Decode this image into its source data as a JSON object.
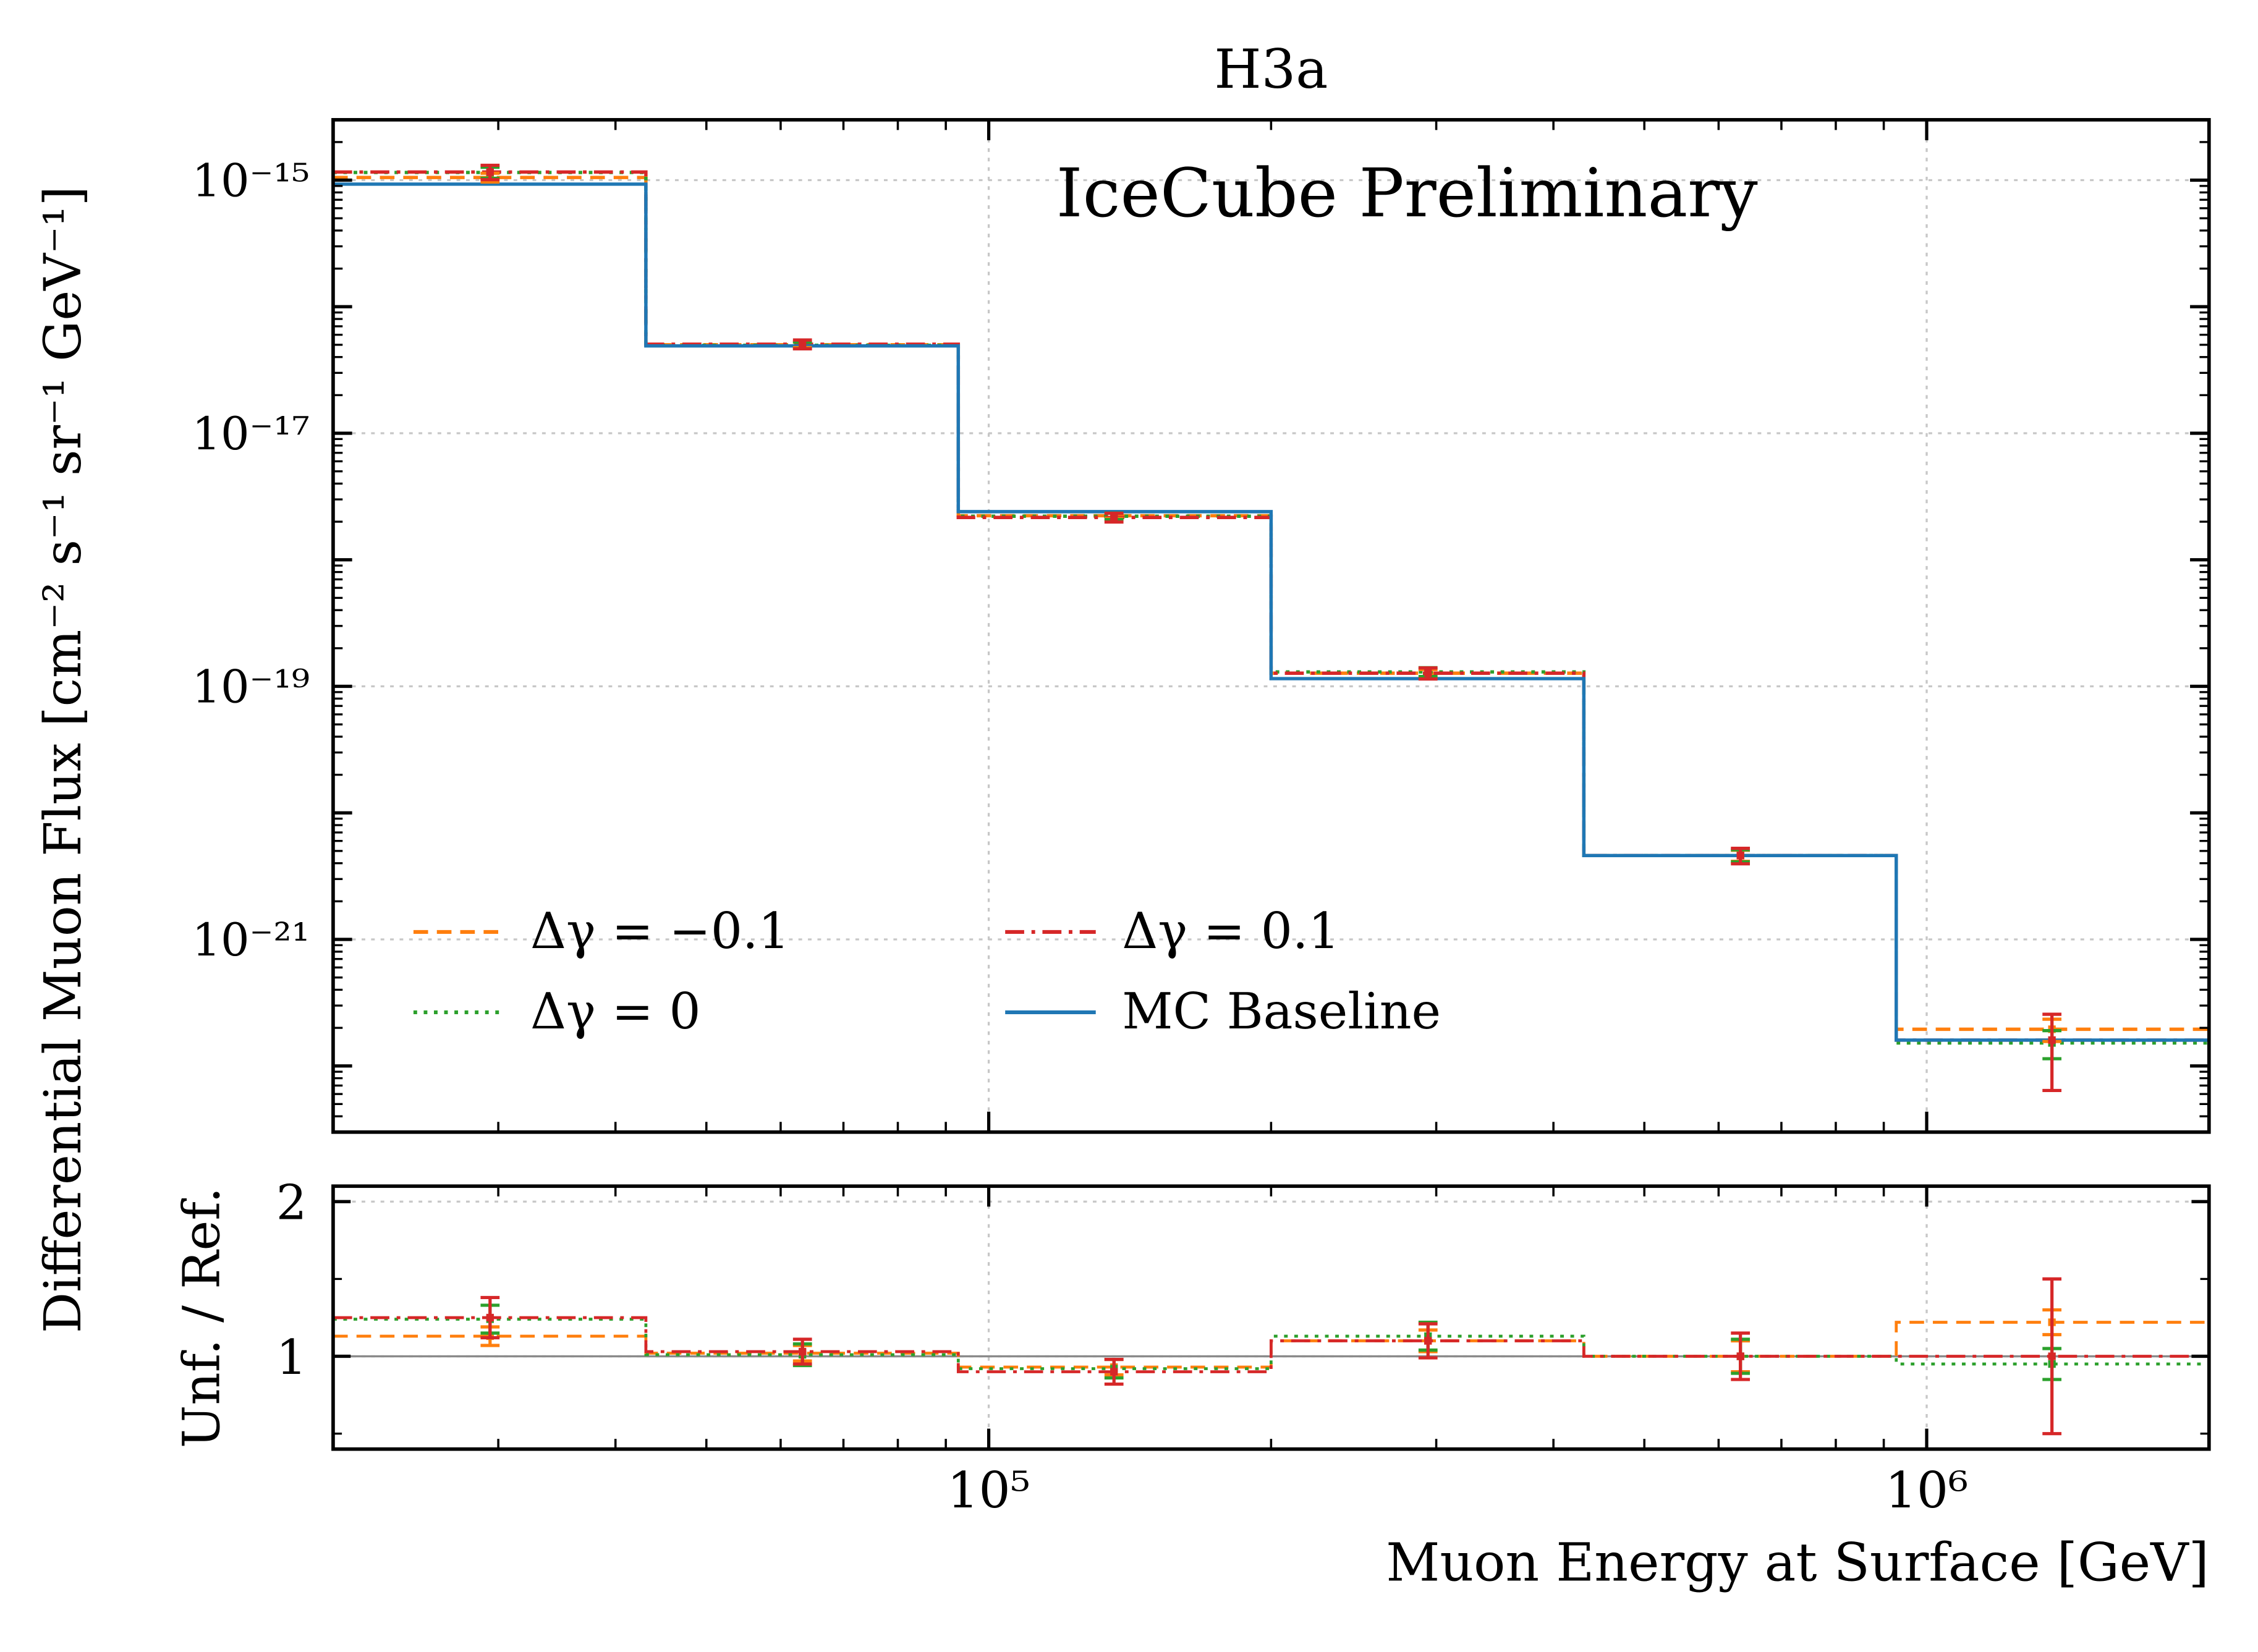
{
  "title": "H3a",
  "watermark": "IceCube Preliminary",
  "axes": {
    "x_label": "Muon Energy at Surface [GeV]",
    "y_label_top": "Differential Muon Flux [cm⁻² s⁻¹ sr⁻¹ GeV⁻¹]",
    "y_label_bottom": "Unf. / Ref."
  },
  "colors": {
    "orange": "#ff7f0e",
    "green": "#2ca02c",
    "red": "#d62728",
    "blue": "#1f77b4",
    "watermark_gray": "#b3b3b3",
    "grid_gray": "#c7c7c7",
    "ref_line_gray": "#8a8a8a"
  },
  "chart_data": {
    "type": "line",
    "subtype": "step-histogram unfolding result with ratio subpanel",
    "x_scale": "log",
    "x_range": [
      20000,
      2000000
    ],
    "x_ticks": [
      {
        "value": 100000,
        "label": "10⁵"
      },
      {
        "value": 1000000,
        "label": "10⁶"
      }
    ],
    "bin_edges": [
      20000,
      43100,
      92800,
      200000,
      431000,
      928000,
      2000000
    ],
    "bin_centers": [
      29400,
      63300,
      136000,
      294000,
      633000,
      1360000
    ],
    "top_panel": {
      "y_scale": "log",
      "y_range": [
        3e-23,
        3e-15
      ],
      "y_ticks": [
        {
          "value": 1e-15,
          "label": "10⁻¹⁵"
        },
        {
          "value": 1e-17,
          "label": "10⁻¹⁷"
        },
        {
          "value": 1e-19,
          "label": "10⁻¹⁹"
        },
        {
          "value": 1e-21,
          "label": "10⁻²¹"
        }
      ],
      "grid": true
    },
    "ratio_panel": {
      "y_scale": "linear",
      "y_range": [
        0.4,
        2.1
      ],
      "y_ticks": [
        {
          "value": 1,
          "label": "1"
        },
        {
          "value": 2,
          "label": "2"
        }
      ],
      "y_minor_ticks": [
        0.5,
        1.5
      ],
      "reference_line": 1,
      "grid": true
    },
    "series": [
      {
        "name": "Δγ = −0.1",
        "color": "#ff7f0e",
        "style": "dashed",
        "flux": [
          1.05e-15,
          5e-17,
          2.23e-18,
          1.27e-19,
          4.6e-21,
          1.95e-22
        ],
        "flux_err_frac": [
          0.08,
          0.05,
          0.05,
          0.07,
          0.1,
          0.2
        ],
        "ratio": [
          1.13,
          1.02,
          0.93,
          1.1,
          1.0,
          1.22
        ],
        "ratio_err": [
          0.06,
          0.05,
          0.05,
          0.07,
          0.1,
          0.08
        ]
      },
      {
        "name": "Δγ = 0",
        "color": "#2ca02c",
        "style": "dotted",
        "flux": [
          1.15e-15,
          4.95e-17,
          2.21e-18,
          1.3e-19,
          4.6e-21,
          1.52e-22
        ],
        "flux_err_frac": [
          0.1,
          0.06,
          0.06,
          0.08,
          0.11,
          0.25
        ],
        "ratio": [
          1.24,
          1.01,
          0.92,
          1.13,
          1.0,
          0.95
        ],
        "ratio_err": [
          0.09,
          0.07,
          0.06,
          0.09,
          0.11,
          0.1
        ]
      },
      {
        "name": "Δγ = 0.1",
        "color": "#d62728",
        "style": "dashdot",
        "flux": [
          1.16e-15,
          5.05e-17,
          2.16e-18,
          1.27e-19,
          4.6e-21,
          1.6e-22
        ],
        "flux_err_frac": [
          0.13,
          0.08,
          0.08,
          0.1,
          0.14,
          0.6
        ],
        "ratio": [
          1.25,
          1.03,
          0.9,
          1.1,
          1.0,
          1.0
        ],
        "ratio_err": [
          0.13,
          0.08,
          0.08,
          0.11,
          0.15,
          0.5
        ]
      },
      {
        "name": "MC Baseline",
        "color": "#1f77b4",
        "style": "solid",
        "flux": [
          9.3e-16,
          4.9e-17,
          2.4e-18,
          1.15e-19,
          4.6e-21,
          1.6e-22
        ]
      }
    ],
    "legend": {
      "entries": [
        "Δγ = −0.1",
        "Δγ = 0",
        "Δγ = 0.1",
        "MC Baseline"
      ],
      "position": "lower left inside top panel",
      "columns": 2
    }
  }
}
